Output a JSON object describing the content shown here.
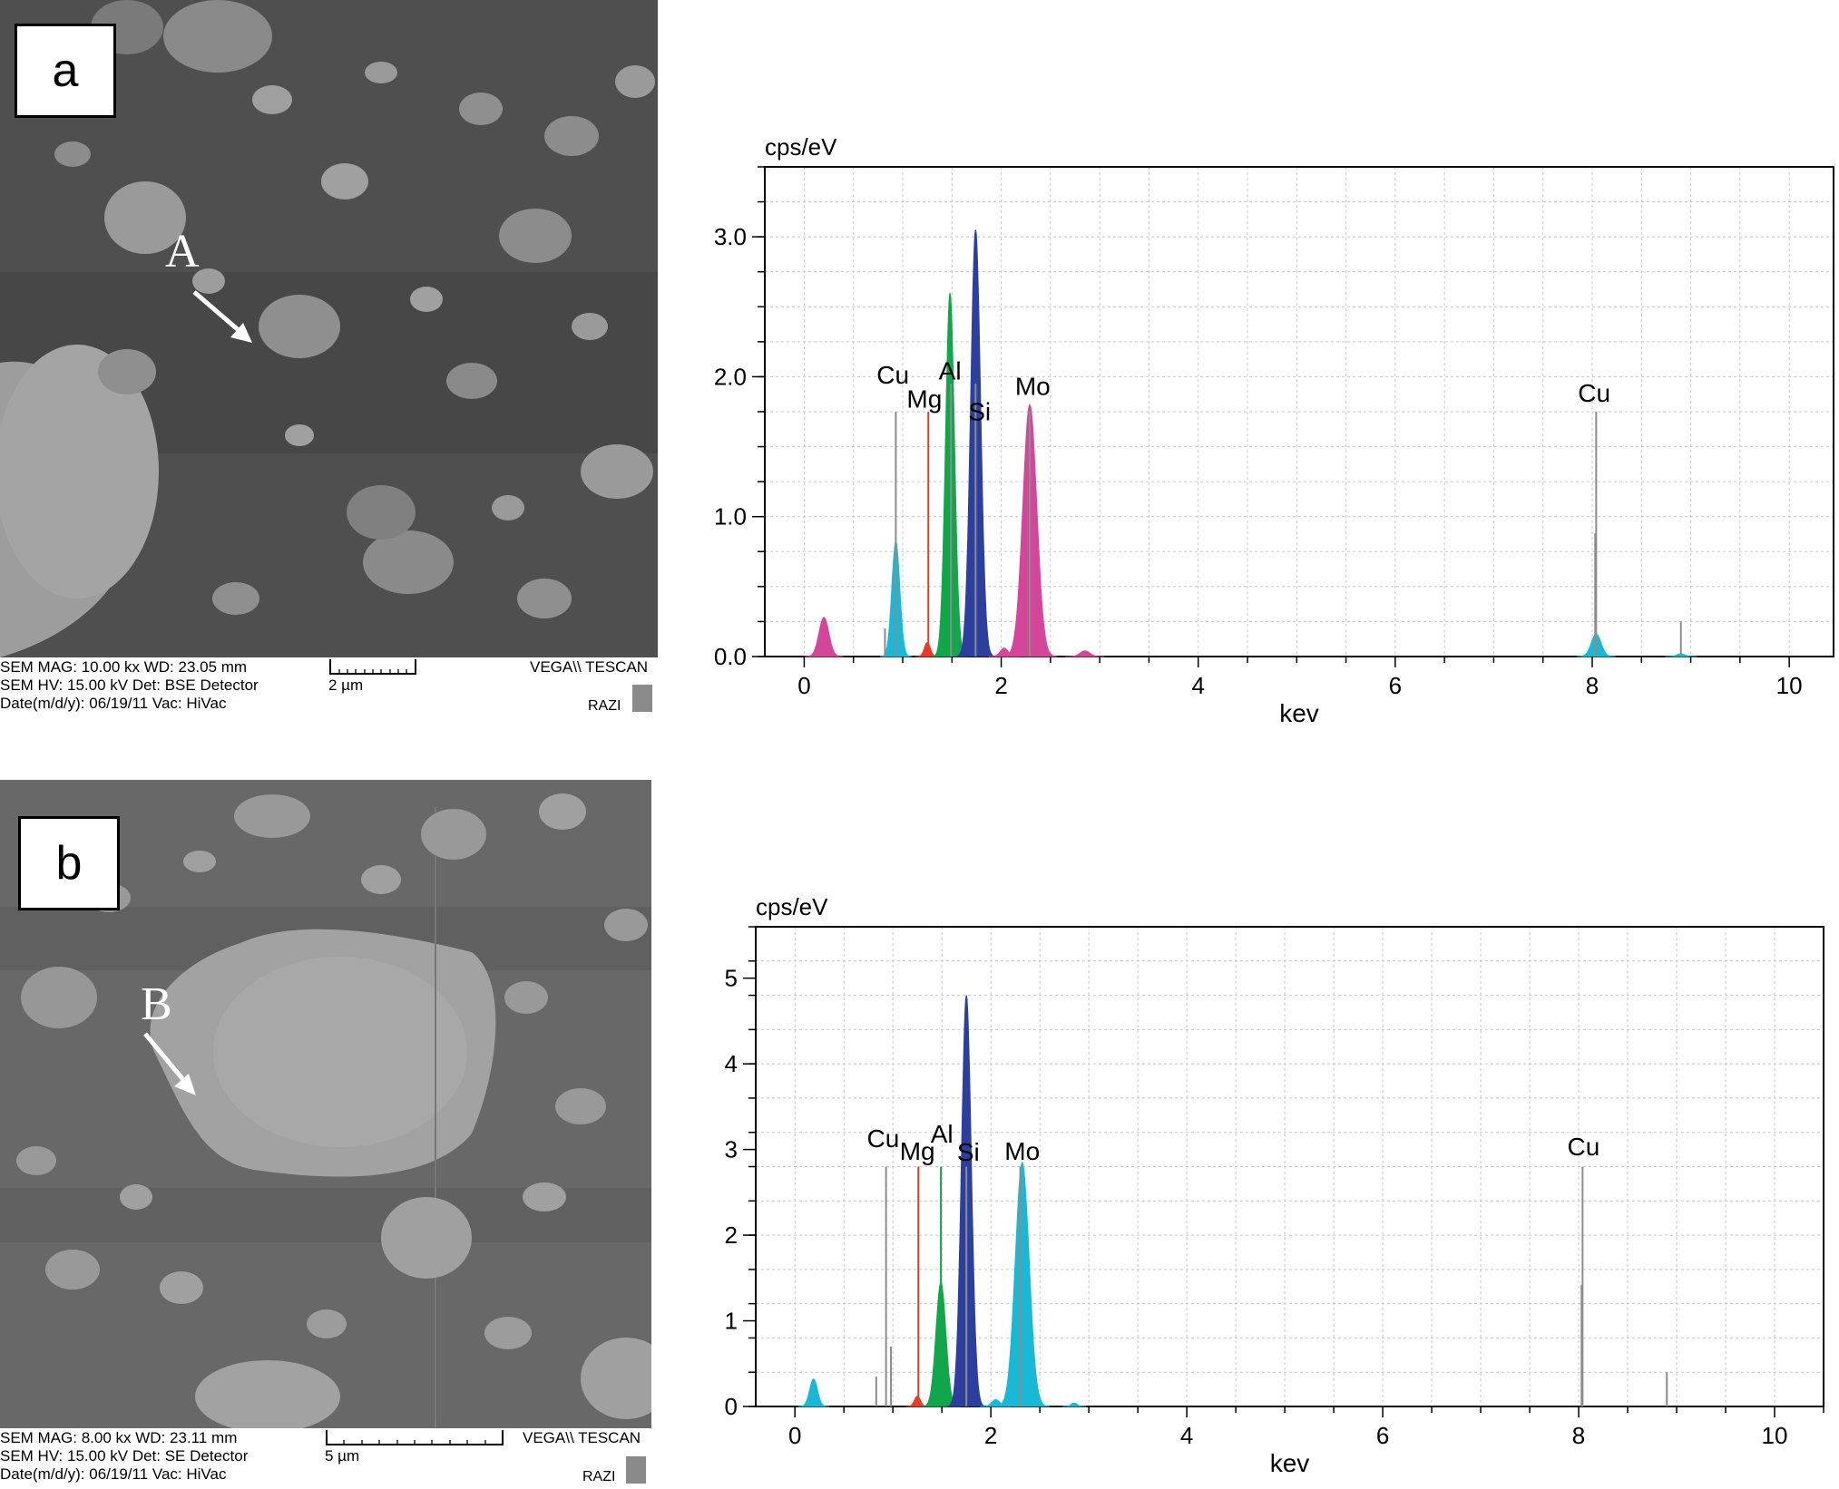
{
  "panels": [
    {
      "id": "a",
      "label": "a",
      "point_letter": "A",
      "caption_lines": [
        "SEM MAG: 10.00 kx  WD: 23.05 mm",
        "SEM HV: 15.00 kV   Det: BSE Detector",
        "Date(m/d/y): 06/19/11 Vac: HiVac"
      ],
      "scale_label": "2 µm",
      "vendor": "VEGA\\\\ TESCAN",
      "lab": "RAZI"
    },
    {
      "id": "b",
      "label": "b",
      "point_letter": "B",
      "caption_lines": [
        "SEM MAG: 8.00 kx   WD: 23.11 mm",
        "SEM HV: 15.00 kV   Det: SE Detector",
        "Date(m/d/y): 06/19/11 Vac: HiVac"
      ],
      "scale_label": "5 µm",
      "vendor": "VEGA\\\\ TESCAN",
      "lab": "RAZI"
    }
  ],
  "colors": {
    "Cu": "#19b8d6",
    "Mg": "#e63a2a",
    "Al": "#12a64a",
    "Si": "#2c3f9e",
    "Mo": "#d4469a",
    "line": "#8c8c8c"
  },
  "chart_data": [
    {
      "type": "area",
      "title": "",
      "ylabel": "cps/eV",
      "xlabel": "kev",
      "xlim": [
        -0.4,
        10.45
      ],
      "ylim": [
        0,
        3.5
      ],
      "xticks": [
        0,
        2,
        4,
        6,
        8,
        10
      ],
      "yticks": [
        0,
        1,
        2,
        3
      ],
      "ytick_labels": [
        "0.0",
        "1.0",
        "2.0",
        "3.0"
      ],
      "grid": true,
      "peaks": [
        {
          "x": 0.2,
          "y": 0.28,
          "w": 0.05,
          "color": "Mo"
        },
        {
          "x": 0.93,
          "y": 0.82,
          "w": 0.04,
          "color": "Cu"
        },
        {
          "x": 1.25,
          "y": 0.1,
          "w": 0.03,
          "color": "Mg"
        },
        {
          "x": 1.48,
          "y": 2.6,
          "w": 0.045,
          "color": "Al"
        },
        {
          "x": 1.74,
          "y": 3.05,
          "w": 0.05,
          "color": "Si"
        },
        {
          "x": 2.03,
          "y": 0.06,
          "w": 0.04,
          "color": "Mo"
        },
        {
          "x": 2.29,
          "y": 1.8,
          "w": 0.07,
          "color": "Mo"
        },
        {
          "x": 2.85,
          "y": 0.04,
          "w": 0.05,
          "color": "Mo"
        },
        {
          "x": 8.04,
          "y": 0.16,
          "w": 0.05,
          "color": "Cu"
        },
        {
          "x": 8.9,
          "y": 0.02,
          "w": 0.04,
          "color": "Cu"
        }
      ],
      "markers": [
        {
          "x": 0.93,
          "y": 1.75,
          "color": "line"
        },
        {
          "x": 0.82,
          "y": 0.2,
          "color": "line"
        },
        {
          "x": 1.26,
          "y": 1.75,
          "color": "Mg"
        },
        {
          "x": 1.49,
          "y": 1.95,
          "color": "line"
        },
        {
          "x": 1.74,
          "y": 1.95,
          "color": "line"
        },
        {
          "x": 2.29,
          "y": 1.75,
          "color": "line"
        },
        {
          "x": 8.04,
          "y": 1.75,
          "color": "line"
        },
        {
          "x": 8.03,
          "y": 0.88,
          "color": "line"
        },
        {
          "x": 8.9,
          "y": 0.25,
          "color": "line"
        }
      ],
      "element_labels": [
        {
          "text": "Cu",
          "x": 0.9,
          "y": 1.95
        },
        {
          "text": "Mg",
          "x": 1.22,
          "y": 1.78
        },
        {
          "text": "Al",
          "x": 1.48,
          "y": 1.98
        },
        {
          "text": "Si",
          "x": 1.78,
          "y": 1.69
        },
        {
          "text": "Mo",
          "x": 2.32,
          "y": 1.87
        },
        {
          "text": "Cu",
          "x": 8.02,
          "y": 1.82
        }
      ]
    },
    {
      "type": "area",
      "title": "",
      "ylabel": "cps/eV",
      "xlabel": "kev",
      "xlim": [
        -0.4,
        10.5
      ],
      "ylim": [
        0,
        5.6
      ],
      "xticks": [
        0,
        2,
        4,
        6,
        8,
        10
      ],
      "yticks": [
        0,
        1,
        2,
        3,
        4,
        5
      ],
      "ytick_labels": [
        "0",
        "1",
        "2",
        "3",
        "4",
        "5"
      ],
      "grid": true,
      "peaks": [
        {
          "x": 0.19,
          "y": 0.32,
          "w": 0.04,
          "color": "Cu"
        },
        {
          "x": 1.25,
          "y": 0.12,
          "w": 0.03,
          "color": "Mg"
        },
        {
          "x": 1.49,
          "y": 1.45,
          "w": 0.05,
          "color": "Al"
        },
        {
          "x": 1.75,
          "y": 4.8,
          "w": 0.05,
          "color": "Si"
        },
        {
          "x": 2.05,
          "y": 0.08,
          "w": 0.04,
          "color": "Cu"
        },
        {
          "x": 2.32,
          "y": 2.85,
          "w": 0.07,
          "color": "Cu"
        },
        {
          "x": 2.85,
          "y": 0.04,
          "w": 0.03,
          "color": "Cu"
        }
      ],
      "markers": [
        {
          "x": 0.93,
          "y": 2.8,
          "color": "line"
        },
        {
          "x": 0.83,
          "y": 0.35,
          "color": "line"
        },
        {
          "x": 0.98,
          "y": 0.7,
          "color": "line"
        },
        {
          "x": 1.26,
          "y": 2.8,
          "color": "Mg"
        },
        {
          "x": 1.49,
          "y": 2.8,
          "color": "Al"
        },
        {
          "x": 1.75,
          "y": 2.8,
          "color": "line"
        },
        {
          "x": 2.3,
          "y": 2.8,
          "color": "line"
        },
        {
          "x": 8.04,
          "y": 2.8,
          "color": "line"
        },
        {
          "x": 8.03,
          "y": 1.42,
          "color": "line"
        },
        {
          "x": 8.9,
          "y": 0.4,
          "color": "line"
        }
      ],
      "element_labels": [
        {
          "text": "Cu",
          "x": 0.9,
          "y": 3.03
        },
        {
          "text": "Mg",
          "x": 1.25,
          "y": 2.88
        },
        {
          "text": "Al",
          "x": 1.5,
          "y": 3.08
        },
        {
          "text": "Si",
          "x": 1.77,
          "y": 2.87
        },
        {
          "text": "Mo",
          "x": 2.32,
          "y": 2.88
        },
        {
          "text": "Cu",
          "x": 8.05,
          "y": 2.93
        }
      ]
    }
  ]
}
